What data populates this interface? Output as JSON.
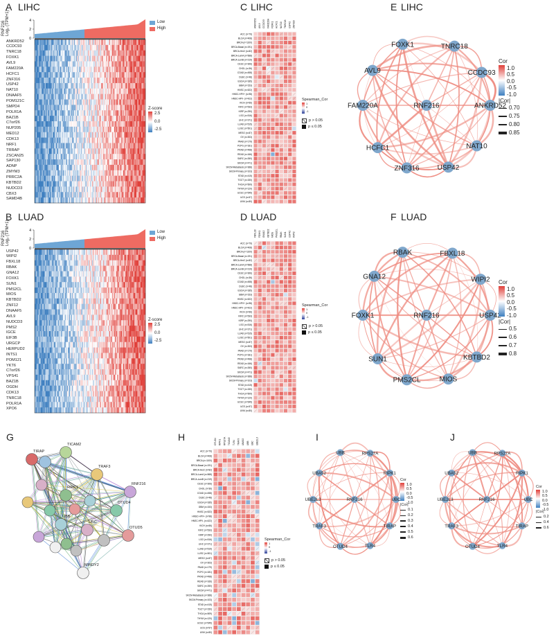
{
  "panels": {
    "A": {
      "letter": "A",
      "cancer": "LIHC"
    },
    "B": {
      "letter": "B",
      "cancer": "LUAD"
    },
    "C": {
      "letter": "C",
      "cancer": "LIHC"
    },
    "D": {
      "letter": "D",
      "cancer": "LUAD"
    },
    "E": {
      "letter": "E",
      "cancer": "LIHC"
    },
    "F": {
      "letter": "F",
      "cancer": "LUAD"
    },
    "G": {
      "letter": "G"
    },
    "H": {
      "letter": "H"
    },
    "I": {
      "letter": "I"
    },
    "J": {
      "letter": "J"
    }
  },
  "heatmap_ylabel": [
    "RNF216",
    "Log₂ (TPM+1)"
  ],
  "heatmap_ticks": [
    "0",
    "2",
    "4"
  ],
  "group_legend": [
    "Low",
    "High"
  ],
  "zscore_legend": {
    "title": "Z-score",
    "ticks": [
      "2.5",
      "0.0",
      "-2.5"
    ]
  },
  "spearman_legend": {
    "title": "Spearman_Cor",
    "ticks": [
      "1",
      "0",
      "-1"
    ],
    "p_gt": "p > 0.05",
    "p_le": "p ≤ 0.05"
  },
  "cor_legend": {
    "title": "Cor",
    "abs_title": "|Cor|",
    "ticks": [
      "1.0",
      "0.5",
      "0.0",
      "-0.5",
      "-1.0"
    ]
  },
  "colors": {
    "low": "#6ea6d5",
    "high": "#ee6b62",
    "node": "#7fa7cc",
    "edge": "#ee8a7f",
    "string_edge": "#7d8b8e"
  },
  "chart_data": [
    {
      "type": "heatmap",
      "panel": "A",
      "rows": [
        "ANKRD52",
        "CCDC93",
        "TNRC18",
        "FOXK1",
        "AVL9",
        "FAM220A",
        "HCFC1",
        "ZNF316",
        "USP42",
        "NAT10",
        "DNAAF5",
        "POM121C",
        "SMPD4",
        "POLR1A",
        "BAZ1B",
        "C7orf26",
        "NUP205",
        "MED12",
        "CDK13",
        "NRF1",
        "TRRAP",
        "ZSCAN25",
        "SAP130",
        "ADNP",
        "ZMYM3",
        "PRRC2A",
        "KBTBD2",
        "NUDCD3",
        "CBX3",
        "SAMD4B"
      ],
      "legend": [
        "Low",
        "High"
      ],
      "ylim": [
        0,
        4
      ]
    },
    {
      "type": "heatmap",
      "panel": "B",
      "rows": [
        "USP42",
        "WIPI2",
        "FBXL18",
        "RBAK",
        "GNA12",
        "FOXK1",
        "SUN1",
        "PMS2CL",
        "MIOS",
        "KBTBD2",
        "ZNF12",
        "DNAAF5",
        "AVL9",
        "NUDCD3",
        "PMS2",
        "IGCE",
        "EIF3B",
        "URGCP",
        "HERPUD2",
        "INTS1",
        "POM121",
        "YKT6",
        "C7orf26",
        "VPS41",
        "BAZ1B",
        "OGDH",
        "CDK13",
        "TNRC18",
        "POLR1A",
        "XPO6"
      ],
      "legend": [
        "Low",
        "High"
      ],
      "ylim": [
        0,
        4
      ]
    },
    {
      "type": "heatmap",
      "panel": "C",
      "columns": [
        "ANKRD52",
        "AVL9",
        "CCDC93",
        "FAM220A",
        "FOXK1",
        "HCFC1",
        "NAT10",
        "TNRC18",
        "USP42",
        "ZNF316"
      ],
      "rows": [
        "ACC (n=79)",
        "BLCA (n=408)",
        "BRCA (n=1100)",
        "BRCA-Basal (n=191)",
        "BRCA-Her2 (n=82)",
        "BRCA-LumA (n=568)",
        "BRCA-LumB (n=219)",
        "CESC (n=306)",
        "CHOL (n=36)",
        "COAD (n=458)",
        "DLBC (n=48)",
        "ESCA (n=185)",
        "GBM (n=153)",
        "HNSC (n=522)",
        "HNSC-HPV+ (n=98)",
        "HNSC-HPV- (n=422)",
        "KICH (n=66)",
        "KIRC (n=533)",
        "KIRP (n=290)",
        "LGG (n=516)",
        "LIHC (n=371)",
        "LUAD (n=515)",
        "LUSC (n=501)",
        "MESO (n=87)",
        "OV (n=303)",
        "PAAD (n=179)",
        "PCPG (n=181)",
        "PRAD (n=498)",
        "READ (n=166)",
        "SARC (n=260)",
        "SKCM (n=471)",
        "SKCM-Metastasis (n=368)",
        "SKCM-Primary (n=103)",
        "STAD (n=415)",
        "TGCT (n=150)",
        "THCA (n=509)",
        "THYM (n=120)",
        "UCEC (n=545)",
        "UCS (n=57)",
        "UVM (n=80)"
      ],
      "legend": [
        "Spearman_Cor",
        "p > 0.05",
        "p ≤ 0.05"
      ]
    },
    {
      "type": "heatmap",
      "panel": "D",
      "columns": [
        "FBXL18",
        "FOXK1",
        "GNA12",
        "KBTBD2",
        "MIOS",
        "PMS2CL",
        "RBAK",
        "SUN1",
        "USP42",
        "WIPI2"
      ],
      "rows": [
        "ACC (n=79)",
        "BLCA (n=408)",
        "BRCA (n=1100)",
        "BRCA-Basal (n=191)",
        "BRCA-Her2 (n=82)",
        "BRCA-LumA (n=568)",
        "BRCA-LumB (n=219)",
        "CESC (n=306)",
        "CHOL (n=36)",
        "COAD (n=458)",
        "DLBC (n=48)",
        "ESCA (n=185)",
        "GBM (n=153)",
        "HNSC (n=522)",
        "HNSC-HPV+ (n=98)",
        "HNSC-HPV- (n=422)",
        "KICH (n=66)",
        "KIRC (n=533)",
        "KIRP (n=290)",
        "LGG (n=516)",
        "LIHC (n=371)",
        "LUAD (n=515)",
        "LUSC (n=501)",
        "MESO (n=87)",
        "OV (n=303)",
        "PAAD (n=179)",
        "PCPG (n=181)",
        "PRAD (n=498)",
        "READ (n=166)",
        "SARC (n=260)",
        "SKCM (n=471)",
        "SKCM-Metastasis (n=368)",
        "SKCM-Primary (n=103)",
        "STAD (n=415)",
        "TGCT (n=150)",
        "THCA (n=509)",
        "THYM (n=120)",
        "UCEC (n=545)",
        "UCS (n=57)",
        "UVM (n=80)"
      ],
      "legend": [
        "Spearman_Cor",
        "p > 0.05",
        "p ≤ 0.05"
      ]
    },
    {
      "type": "heatmap",
      "panel": "H",
      "columns": [
        "OTUD4",
        "RIPK1",
        "RPS27A",
        "TICAM2",
        "TLR4",
        "TRAF3",
        "UBA52",
        "UBB",
        "UBC",
        "UBE2L3"
      ],
      "rows": [
        "ACC (n=79)",
        "BLCA (n=408)",
        "BRCA (n=1100)",
        "BRCA-Basal (n=191)",
        "BRCA-Her2 (n=82)",
        "BRCA-LumA (n=568)",
        "BRCA-LumB (n=219)",
        "CESC (n=306)",
        "CHOL (n=36)",
        "COAD (n=458)",
        "DLBC (n=48)",
        "ESCA (n=185)",
        "GBM (n=153)",
        "HNSC (n=522)",
        "HNSC-HPV+ (n=98)",
        "HNSC-HPV- (n=422)",
        "KICH (n=66)",
        "KIRC (n=533)",
        "KIRP (n=290)",
        "LGG (n=516)",
        "LIHC (n=371)",
        "LUAD (n=515)",
        "LUSC (n=501)",
        "MESO (n=87)",
        "OV (n=303)",
        "PAAD (n=179)",
        "PCPG (n=181)",
        "PRAD (n=498)",
        "READ (n=166)",
        "SARC (n=260)",
        "SKCM (n=471)",
        "SKCM-Metastasis (n=368)",
        "SKCM-Primary (n=103)",
        "STAD (n=415)",
        "TGCT (n=150)",
        "THCA (n=509)",
        "THYM (n=120)",
        "UCEC (n=545)",
        "UCS (n=57)",
        "UVM (n=80)"
      ],
      "legend": [
        "Spearman_Cor",
        "p > 0.05",
        "p ≤ 0.05"
      ]
    },
    {
      "type": "network",
      "panel": "E",
      "center": "RNF216",
      "nodes": [
        "FOXK1",
        "TNRC18",
        "CCDC93",
        "ANKRD52",
        "NAT10",
        "USP42",
        "ZNF316",
        "HCFC1",
        "FAM220A",
        "AVL9"
      ],
      "legend": {
        "cor_ticks": [
          "1.0",
          "0.5",
          "0.0",
          "-0.5",
          "-1.0"
        ],
        "abs_cor": [
          "0.70",
          "0.75",
          "0.80",
          "0.85"
        ]
      }
    },
    {
      "type": "network",
      "panel": "F",
      "center": "RNF216",
      "nodes": [
        "RBAK",
        "FBXL18",
        "WIPI2",
        "USP42",
        "KBTBD2",
        "MIOS",
        "PMS2CL",
        "SUN1",
        "FOXK1",
        "GNA12"
      ],
      "legend": {
        "cor_ticks": [
          "1.0",
          "0.5",
          "0.0",
          "-0.5",
          "-1.0"
        ],
        "abs_cor": [
          "0.5",
          "0.6",
          "0.7",
          "0.8"
        ]
      }
    },
    {
      "type": "network",
      "panel": "G",
      "nodes": [
        "TIRAP",
        "TLR4",
        "TICAM2",
        "TRAF3",
        "RNF216",
        "OTUD4",
        "OTUD5",
        "OTUD7B",
        "MINDY2",
        "UBB",
        "UBC",
        "RIPK1"
      ],
      "labeled_nodes": [
        "TIRAP",
        "TICAM2",
        "TRAF3",
        "RNF216",
        "OTUD4",
        "OTUD5",
        "MINDY2",
        "UBB",
        "UBC",
        "RIPK1"
      ]
    },
    {
      "type": "network",
      "panel": "I",
      "center": "RNF216",
      "nodes": [
        "UBB",
        "RPS27A",
        "RIPK1",
        "UBC",
        "TIRAP",
        "TLR4",
        "OTUD4",
        "TRAF3",
        "UBE2L3",
        "UBA52"
      ],
      "legend": {
        "cor_ticks": [
          "1.0",
          "0.5",
          "0.0",
          "-0.5",
          "-1.0"
        ],
        "abs_cor": [
          "0.1",
          "0.2",
          "0.3",
          "0.4",
          "0.5",
          "0.6"
        ]
      }
    },
    {
      "type": "network",
      "panel": "J",
      "center": "RNF216",
      "nodes": [
        "UBB",
        "RPS27A",
        "RIPK1",
        "UBC",
        "TIRAP",
        "TLR4",
        "OTUD4",
        "TRAF3",
        "UBE2L3",
        "UBA52"
      ],
      "legend": {
        "cor_ticks": [
          "1.0",
          "0.5",
          "0.0",
          "-0.5",
          "-1.0"
        ],
        "abs_cor": [
          "0.2",
          "0.4",
          "0.6"
        ]
      }
    }
  ]
}
